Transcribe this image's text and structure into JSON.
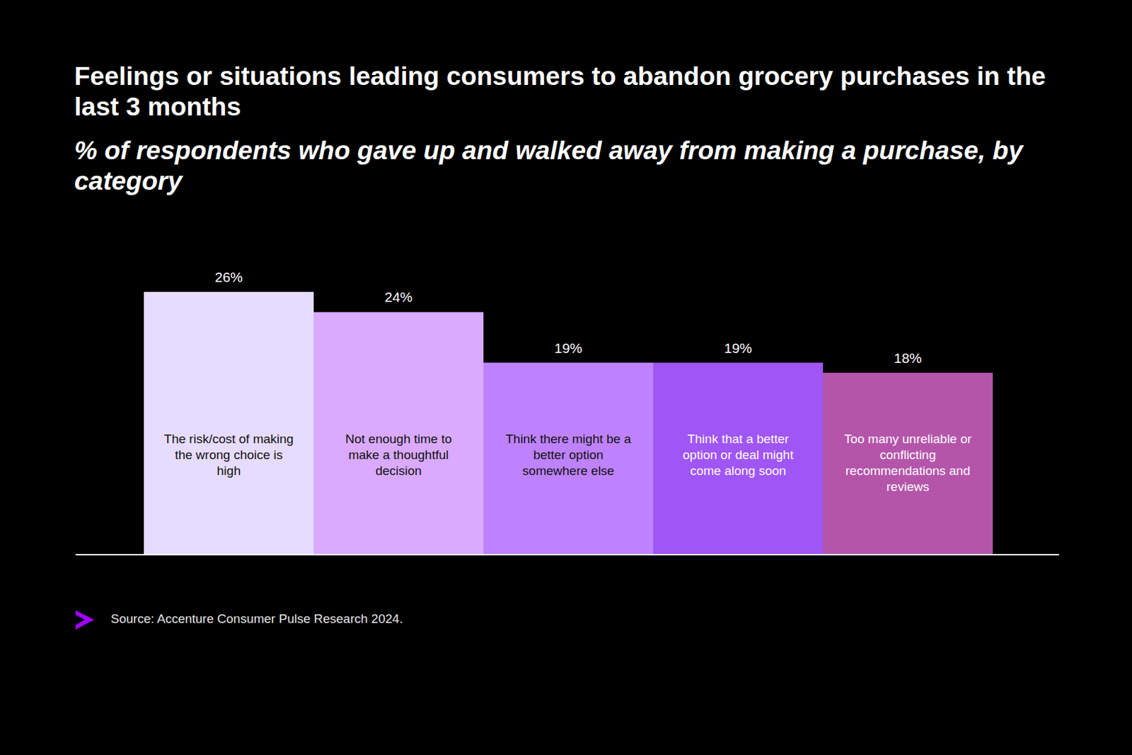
{
  "chart_data": {
    "type": "bar",
    "title": "Feelings or situations leading consumers to abandon grocery purchases in the last 3 months",
    "subtitle": "% of respondents who gave up and walked away from making a purchase, by category",
    "categories": [
      "The risk/cost of making the wrong choice is high",
      "Not enough time to make a thoughtful decision",
      "Think there might be a better option somewhere else",
      "Think that a better option or deal might come along soon",
      "Too many unreliable or conflicting recommendations and reviews"
    ],
    "values": [
      26,
      24,
      19,
      19,
      18
    ],
    "value_labels": [
      "26%",
      "24%",
      "19%",
      "19%",
      "18%"
    ],
    "colors": [
      "#e6dcff",
      "#d9aaff",
      "#be82ff",
      "#a055f5",
      "#b455aa"
    ],
    "ylim": [
      0,
      26
    ],
    "tick_labels": false,
    "data_labels": true,
    "source": "Source: Accenture Consumer Pulse Research 2024."
  }
}
